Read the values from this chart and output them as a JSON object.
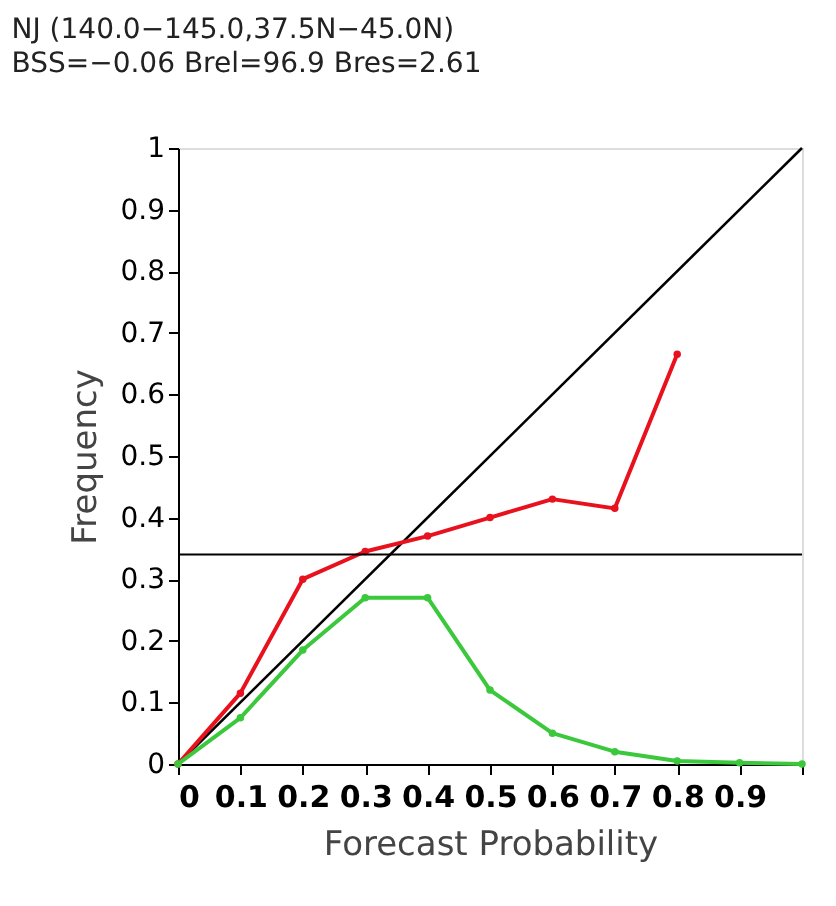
{
  "chart_data": {
    "type": "line",
    "title": "NJ   (140.0−145.0,37.5N−45.0N)",
    "subtitle": "BSS=−0.06   Brel=96.9   Bres=2.61",
    "xlabel": "Forecast Probability",
    "ylabel": "Frequency",
    "x": [
      0,
      0.1,
      0.2,
      0.3,
      0.4,
      0.5,
      0.6,
      0.7,
      0.8
    ],
    "series": [
      {
        "type": "line",
        "x": [
          0,
          1
        ],
        "values": [
          0,
          1
        ],
        "color": "#000000",
        "marker": "none"
      },
      {
        "color": "#e8121e",
        "values": [
          0,
          0.115,
          0.3,
          0.345,
          0.37,
          0.4,
          0.43,
          0.415,
          0.665
        ],
        "marker": "circle"
      },
      {
        "color": "#3cc83c",
        "x": [
          0,
          0.1,
          0.2,
          0.3,
          0.4,
          0.5,
          0.6,
          0.7,
          0.8,
          0.9,
          1
        ],
        "values": [
          0,
          0.075,
          0.185,
          0.27,
          0.27,
          0.12,
          0.05,
          0.02,
          0.005,
          0.002,
          0
        ],
        "marker": "circle"
      }
    ],
    "ref_lines": [
      {
        "axis": "y",
        "value": 0.34,
        "color": "#000000"
      }
    ],
    "xlim": [
      0,
      1
    ],
    "xticks": [
      0,
      0.1,
      0.2,
      0.3,
      0.4,
      0.5,
      0.6,
      0.7,
      0.8,
      0.9,
      {
        "value": 1,
        "label": null
      }
    ],
    "ylim": [
      0,
      1
    ],
    "yticks": [
      0,
      0.1,
      0.2,
      0.3,
      0.4,
      0.5,
      0.6,
      0.7,
      0.8,
      0.9,
      1
    ],
    "grid": false
  }
}
